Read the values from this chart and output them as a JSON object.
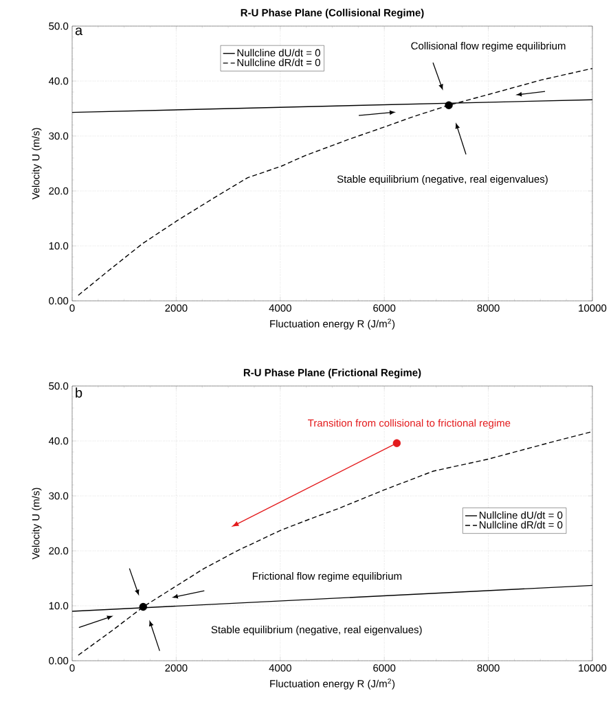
{
  "chart_data": [
    {
      "type": "line",
      "title": "R-U Phase Plane (Collisional Regime)",
      "xlabel": "Fluctuation energy R (J/m$^{2}$)",
      "ylabel": "Velocity U (m/s)",
      "annotations": [
        "a",
        "Collisional flow regime equilibrium",
        "Stable equilibrium (negative, real eigenvalues)"
      ],
      "series": [
        {
          "name": "Nullcline dU/dt = 0",
          "color": "#000000",
          "line_style": "solid",
          "x": [
            0,
            10000
          ],
          "values": [
            34.3,
            36.6
          ]
        },
        {
          "name": "Nullcline dR/dt = 0",
          "color": "#000000",
          "line_style": "dashed",
          "x": [
            117,
            700,
            1350,
            2020,
            2720,
            3370,
            4020,
            4470,
            5320,
            6020,
            6550,
            7240,
            8020,
            9020,
            10000
          ],
          "values": [
            1.0,
            5.5,
            10.4,
            14.6,
            18.7,
            22.4,
            24.5,
            26.4,
            29.4,
            31.7,
            33.5,
            35.6,
            37.6,
            40.2,
            42.3
          ]
        },
        {
          "type": "scatter",
          "color": "#000000",
          "x": [
            7240
          ],
          "values": [
            35.6
          ]
        }
      ],
      "xlim": [
        0,
        10000
      ],
      "ylim": [
        0,
        50
      ],
      "xticks": [
        0,
        2000,
        4000,
        6000,
        8000,
        10000
      ],
      "yticks": [
        {
          "value": 0,
          "label": "0.00"
        },
        {
          "value": 10,
          "label": "10.0"
        },
        {
          "value": 20,
          "label": "20.0"
        },
        {
          "value": 30,
          "label": "30.0"
        },
        {
          "value": 40,
          "label": "40.0"
        },
        {
          "value": 50,
          "label": "50.0"
        }
      ],
      "grid": true,
      "legend": "top left"
    },
    {
      "type": "line",
      "title": "R-U Phase Plane (Frictional Regime)",
      "xlabel": "Fluctuation energy R (J/m$^{2}$)",
      "ylabel": "Velocity U (m/s)",
      "annotations": [
        "b",
        {
          "text": "Transition from collisional to frictional regime",
          "x": 6240,
          "y": 39.6
        },
        "Frictional flow regime equilibrium",
        "Stable equilibrium (negative, real eigenvalues)"
      ],
      "series": [
        {
          "name": "Nullcline dU/dt = 0",
          "color": "#000000",
          "line_style": "solid",
          "x": [
            0,
            10000
          ],
          "values": [
            9.0,
            13.7
          ]
        },
        {
          "name": "Nullcline dR/dt = 0",
          "color": "#000000",
          "line_style": "dashed",
          "x": [
            117,
            770,
            1380,
            2000,
            2520,
            3170,
            4000,
            4600,
            5120,
            6000,
            6940,
            8000,
            9220,
            10000
          ],
          "values": [
            1.0,
            5.5,
            9.9,
            13.6,
            16.7,
            20.0,
            23.7,
            25.9,
            27.7,
            31.1,
            34.5,
            36.7,
            39.8,
            41.7
          ]
        },
        {
          "type": "scatter",
          "color": "#000000",
          "x": [
            1365
          ],
          "values": [
            9.8
          ]
        },
        {
          "type": "scatter",
          "color": "#e31a1c",
          "x": [
            6240
          ],
          "values": [
            39.6
          ]
        }
      ],
      "xlim": [
        0,
        10000
      ],
      "ylim": [
        0,
        50
      ],
      "xticks": [
        0,
        2000,
        4000,
        6000,
        8000,
        10000
      ],
      "yticks": [
        {
          "value": 0,
          "label": "0.00"
        },
        {
          "value": 10,
          "label": "10.0"
        },
        {
          "value": 20,
          "label": "20.0"
        },
        {
          "value": 30,
          "label": "30.0"
        },
        {
          "value": 40,
          "label": "40.0"
        },
        {
          "value": 50,
          "label": "50.0"
        }
      ],
      "grid": true,
      "legend": "right"
    }
  ]
}
